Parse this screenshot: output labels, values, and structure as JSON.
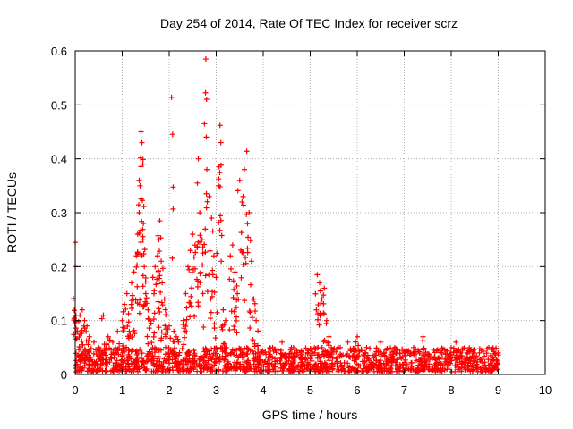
{
  "chart_data": {
    "type": "scatter",
    "title": "Day 254 of 2014, Rate Of TEC Index for receiver scrz",
    "xlabel": "GPS time / hours",
    "ylabel": "ROTI / TECUs",
    "xlim": [
      0,
      10
    ],
    "ylim": [
      0,
      0.6
    ],
    "xticks": [
      "0",
      "1",
      "2",
      "3",
      "4",
      "5",
      "6",
      "7",
      "8",
      "9",
      "10"
    ],
    "yticks": [
      "0",
      "0.1",
      "0.2",
      "0.3",
      "0.4",
      "0.5",
      "0.6"
    ],
    "grid": true,
    "marker": "+",
    "color": "#ff0000",
    "series": [
      {
        "name": "ROTI",
        "points": [
          [
            0.0,
            0.245
          ],
          [
            0.0,
            0.2
          ],
          [
            0.02,
            0.1
          ],
          [
            0.05,
            0.08
          ],
          [
            0.1,
            0.11
          ],
          [
            0.15,
            0.12
          ],
          [
            0.2,
            0.1
          ],
          [
            0.25,
            0.09
          ],
          [
            0.3,
            0.07
          ],
          [
            0.4,
            0.06
          ],
          [
            0.5,
            0.05
          ],
          [
            0.6,
            0.11
          ],
          [
            0.7,
            0.07
          ],
          [
            0.8,
            0.06
          ],
          [
            0.9,
            0.08
          ],
          [
            1.0,
            0.1
          ],
          [
            1.05,
            0.13
          ],
          [
            1.1,
            0.15
          ],
          [
            1.15,
            0.08
          ],
          [
            1.2,
            0.17
          ],
          [
            1.25,
            0.19
          ],
          [
            1.3,
            0.22
          ],
          [
            1.33,
            0.26
          ],
          [
            1.36,
            0.3
          ],
          [
            1.38,
            0.35
          ],
          [
            1.4,
            0.45
          ],
          [
            1.42,
            0.43
          ],
          [
            1.44,
            0.39
          ],
          [
            1.45,
            0.28
          ],
          [
            1.47,
            0.2
          ],
          [
            1.5,
            0.15
          ],
          [
            1.55,
            0.12
          ],
          [
            1.6,
            0.1
          ],
          [
            1.65,
            0.18
          ],
          [
            1.7,
            0.2
          ],
          [
            1.75,
            0.22
          ],
          [
            1.78,
            0.25
          ],
          [
            1.8,
            0.285
          ],
          [
            1.83,
            0.21
          ],
          [
            1.85,
            0.17
          ],
          [
            1.9,
            0.14
          ],
          [
            1.95,
            0.11
          ],
          [
            2.0,
            0.09
          ],
          [
            2.05,
            0.514
          ],
          [
            2.1,
            0.08
          ],
          [
            2.15,
            0.07
          ],
          [
            2.2,
            0.06
          ],
          [
            2.3,
            0.1
          ],
          [
            2.35,
            0.15
          ],
          [
            2.4,
            0.2
          ],
          [
            2.45,
            0.23
          ],
          [
            2.5,
            0.26
          ],
          [
            2.55,
            0.24
          ],
          [
            2.6,
            0.355
          ],
          [
            2.62,
            0.4
          ],
          [
            2.65,
            0.3
          ],
          [
            2.7,
            0.25
          ],
          [
            2.75,
            0.465
          ],
          [
            2.78,
            0.585
          ],
          [
            2.8,
            0.38
          ],
          [
            2.85,
            0.33
          ],
          [
            2.9,
            0.29
          ],
          [
            2.95,
            0.22
          ],
          [
            3.0,
            0.18
          ],
          [
            3.05,
            0.35
          ],
          [
            3.08,
            0.462
          ],
          [
            3.1,
            0.43
          ],
          [
            3.15,
            0.12
          ],
          [
            3.2,
            0.1
          ],
          [
            3.3,
            0.22
          ],
          [
            3.35,
            0.24
          ],
          [
            3.4,
            0.19
          ],
          [
            3.45,
            0.15
          ],
          [
            3.5,
            0.36
          ],
          [
            3.55,
            0.32
          ],
          [
            3.6,
            0.38
          ],
          [
            3.65,
            0.414
          ],
          [
            3.7,
            0.3
          ],
          [
            3.75,
            0.21
          ],
          [
            3.8,
            0.14
          ],
          [
            3.85,
            0.1
          ],
          [
            4.0,
            0.04
          ],
          [
            4.2,
            0.05
          ],
          [
            4.4,
            0.06
          ],
          [
            4.6,
            0.05
          ],
          [
            4.8,
            0.04
          ],
          [
            5.0,
            0.03
          ],
          [
            5.1,
            0.04
          ],
          [
            5.15,
            0.185
          ],
          [
            5.2,
            0.17
          ],
          [
            5.25,
            0.14
          ],
          [
            5.3,
            0.16
          ],
          [
            5.35,
            0.1
          ],
          [
            5.4,
            0.07
          ],
          [
            5.6,
            0.05
          ],
          [
            5.8,
            0.06
          ],
          [
            6.0,
            0.07
          ],
          [
            6.2,
            0.05
          ],
          [
            6.5,
            0.06
          ],
          [
            6.8,
            0.05
          ],
          [
            7.0,
            0.04
          ],
          [
            7.2,
            0.05
          ],
          [
            7.4,
            0.07
          ],
          [
            7.6,
            0.03
          ],
          [
            7.8,
            0.04
          ],
          [
            8.0,
            0.05
          ],
          [
            8.1,
            0.06
          ],
          [
            8.2,
            0.04
          ],
          [
            8.4,
            0.03
          ],
          [
            8.6,
            0.04
          ],
          [
            8.8,
            0.05
          ],
          [
            9.0,
            0.04
          ]
        ],
        "baseline_band": {
          "x_range": [
            0.0,
            9.0
          ],
          "y_range": [
            0.005,
            0.05
          ]
        }
      }
    ]
  }
}
